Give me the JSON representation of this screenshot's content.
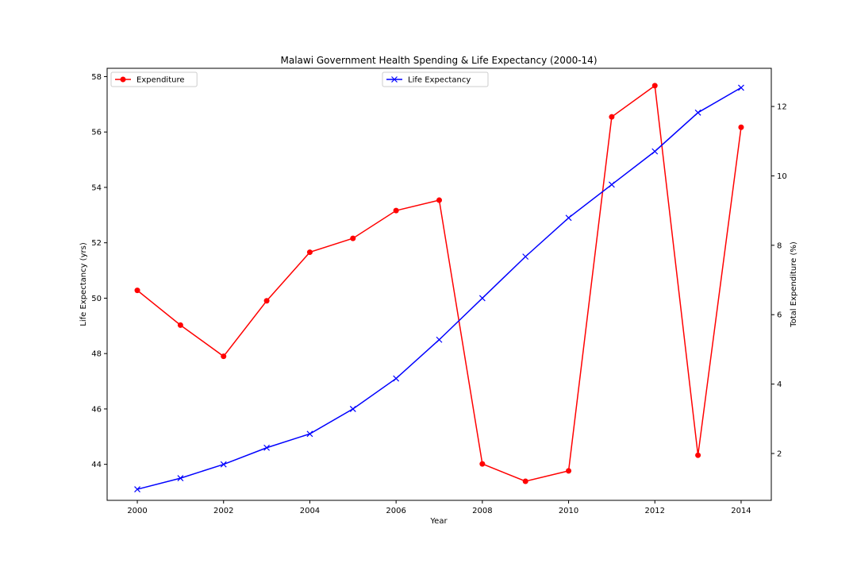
{
  "chart_data": {
    "type": "line",
    "title": "Malawi Government Health Spending & Life Expectancy (2000-14)",
    "xlabel": "Year",
    "ylabel_left": "Life Expectancy (yrs)",
    "ylabel_right": "Total Expenditure (%)",
    "x": [
      2000,
      2001,
      2002,
      2003,
      2004,
      2005,
      2006,
      2007,
      2008,
      2009,
      2010,
      2011,
      2012,
      2013,
      2014
    ],
    "xlim": [
      1999.3,
      2014.7
    ],
    "x_ticks": [
      2000,
      2002,
      2004,
      2006,
      2008,
      2010,
      2012,
      2014
    ],
    "left_axis": {
      "ylim": [
        42.7,
        58.3
      ],
      "ticks": [
        44,
        46,
        48,
        50,
        52,
        54,
        56,
        58
      ]
    },
    "right_axis": {
      "ylim": [
        0.65,
        13.1
      ],
      "ticks": [
        2,
        4,
        6,
        8,
        10,
        12
      ]
    },
    "grid": false,
    "series": [
      {
        "name": "Expenditure",
        "axis": "right",
        "color": "#ff0000",
        "marker": "circle",
        "legend_position": "top-left",
        "values": [
          6.7,
          5.7,
          4.8,
          6.4,
          7.8,
          8.2,
          9.0,
          9.3,
          1.7,
          1.2,
          1.5,
          11.7,
          12.6,
          1.95,
          11.4
        ]
      },
      {
        "name": "Life Expectancy",
        "axis": "left",
        "color": "#0000ff",
        "marker": "x",
        "legend_position": "top-center",
        "values": [
          43.1,
          43.5,
          44.0,
          44.6,
          45.1,
          46.0,
          47.1,
          48.5,
          50.0,
          51.5,
          52.9,
          54.1,
          55.3,
          56.7,
          57.6
        ]
      }
    ]
  }
}
